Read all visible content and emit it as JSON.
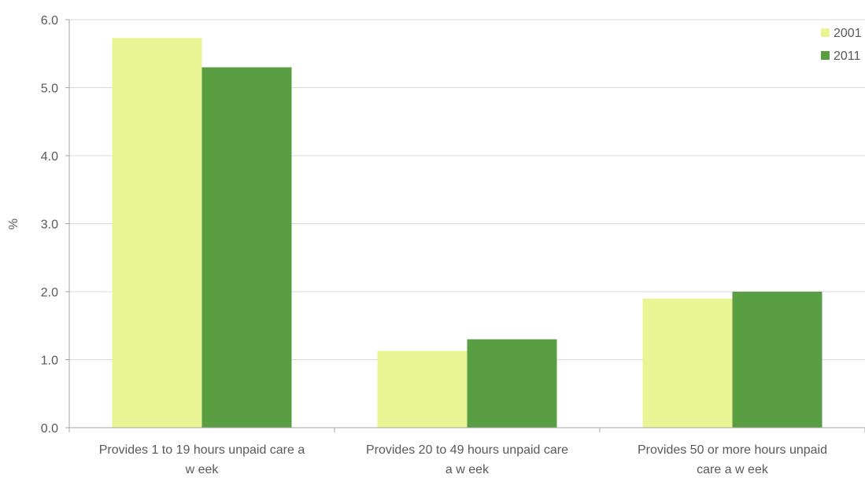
{
  "chart_data": {
    "type": "bar",
    "ylabel": "%",
    "ylim": [
      0,
      6
    ],
    "yticks": [
      "0.0",
      "1.0",
      "2.0",
      "3.0",
      "4.0",
      "5.0",
      "6.0"
    ],
    "categories": [
      [
        "Provides 1 to 19 hours unpaid care a",
        "w eek"
      ],
      [
        "Provides 20 to 49 hours unpaid care",
        "a w eek"
      ],
      [
        "Provides 50 or more hours unpaid",
        "care a w eek"
      ]
    ],
    "series": [
      {
        "name": "2001",
        "values": [
          5.73,
          1.13,
          1.9
        ],
        "color": "#e9f595"
      },
      {
        "name": "2011",
        "values": [
          5.3,
          1.3,
          2.0
        ],
        "color": "#5a9e44"
      }
    ],
    "grid": true,
    "legend": "top-right"
  }
}
